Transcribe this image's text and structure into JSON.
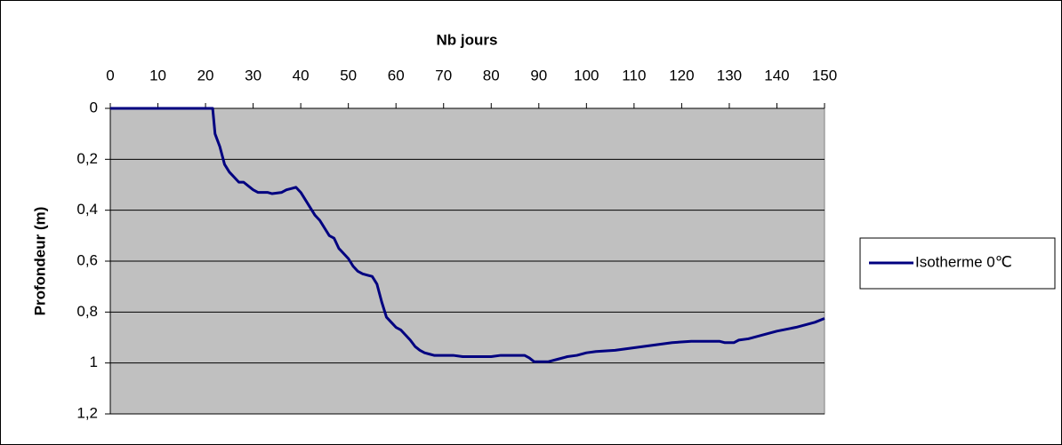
{
  "chart_data": {
    "type": "line",
    "title": "Nb jours",
    "y_label": "Profondeur (m)",
    "x": [
      0,
      21.5,
      22,
      23,
      24,
      25,
      26,
      27,
      28,
      30,
      31,
      33,
      34,
      36,
      37,
      38,
      39,
      40,
      41,
      42,
      43,
      44,
      45,
      46,
      47,
      48,
      49,
      50,
      51,
      52,
      53,
      54,
      55,
      56,
      57,
      58,
      59,
      60,
      61,
      62,
      63,
      64,
      65,
      66,
      67,
      68,
      72,
      74,
      80,
      82,
      87,
      88,
      89,
      92,
      94,
      96,
      98,
      100,
      102,
      106,
      110,
      114,
      118,
      122,
      128,
      129,
      131,
      132,
      134,
      136,
      140,
      144,
      148,
      150
    ],
    "series": [
      {
        "name": "Isotherme 0℃",
        "color": "#000080",
        "values": [
          0,
          0,
          0.1,
          0.15,
          0.22,
          0.25,
          0.27,
          0.29,
          0.29,
          0.32,
          0.33,
          0.33,
          0.335,
          0.33,
          0.32,
          0.315,
          0.31,
          0.33,
          0.36,
          0.39,
          0.42,
          0.44,
          0.47,
          0.5,
          0.51,
          0.55,
          0.57,
          0.59,
          0.62,
          0.64,
          0.65,
          0.655,
          0.66,
          0.69,
          0.76,
          0.82,
          0.84,
          0.86,
          0.87,
          0.89,
          0.91,
          0.935,
          0.95,
          0.96,
          0.965,
          0.97,
          0.97,
          0.975,
          0.975,
          0.97,
          0.97,
          0.98,
          0.995,
          0.995,
          0.985,
          0.975,
          0.97,
          0.96,
          0.955,
          0.95,
          0.94,
          0.93,
          0.92,
          0.915,
          0.915,
          0.92,
          0.92,
          0.91,
          0.905,
          0.895,
          0.875,
          0.86,
          0.84,
          0.825
        ]
      }
    ],
    "xlim": [
      0,
      150
    ],
    "xticks": [
      0,
      10,
      20,
      30,
      40,
      50,
      60,
      70,
      80,
      90,
      100,
      110,
      120,
      130,
      140,
      150
    ],
    "ylim": [
      0,
      1.2
    ],
    "yticks": [
      0,
      {
        "value": 0.2,
        "label": "0,2"
      },
      {
        "value": 0.4,
        "label": "0,4"
      },
      {
        "value": 0.6,
        "label": "0,6"
      },
      {
        "value": 0.8,
        "label": "0,8"
      },
      1,
      {
        "value": 1.2,
        "label": "1,2"
      }
    ],
    "y_inverted": true,
    "x_axis_position": "top",
    "plot_background": "#c0c0c0",
    "grid": true,
    "legend_position": "right"
  }
}
